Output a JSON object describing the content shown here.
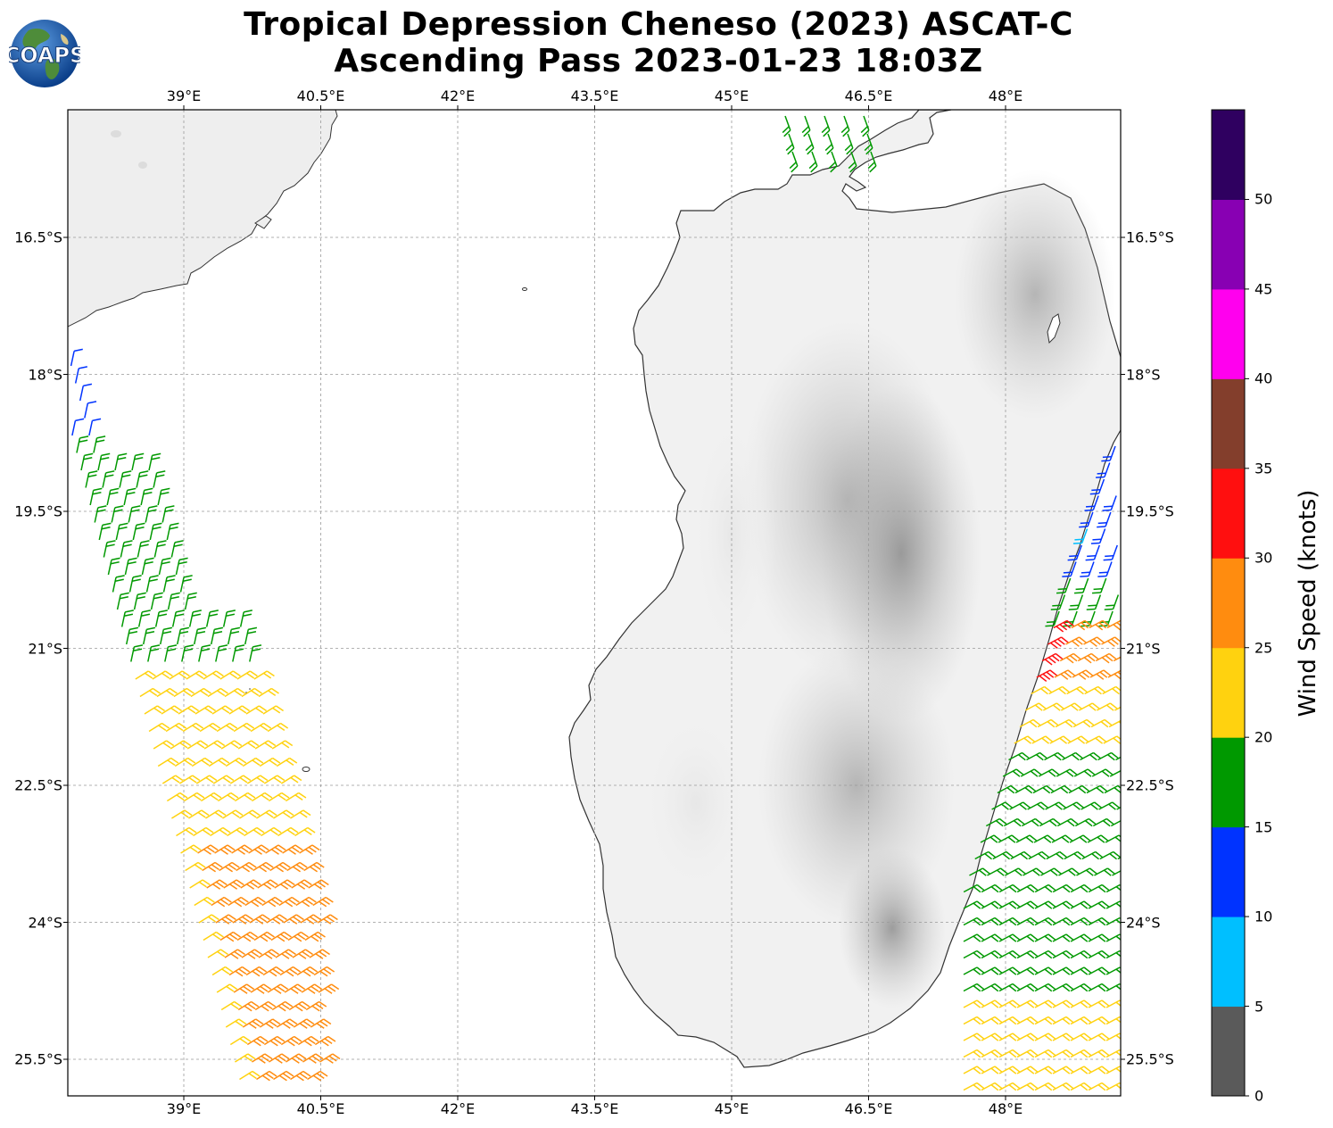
{
  "title": {
    "line1": "Tropical Depression Cheneso (2023) ASCAT-C",
    "line2": "Ascending Pass 2023-01-23 18:03Z"
  },
  "logo": {
    "text": "COAPS",
    "icon": "globe-icon"
  },
  "map": {
    "lon_ticks": [
      "39°E",
      "40.5°E",
      "42°E",
      "43.5°E",
      "45°E",
      "46.5°E",
      "48°E"
    ],
    "lat_ticks": [
      "16.5°S",
      "18°S",
      "19.5°S",
      "21°S",
      "22.5°S",
      "24°S",
      "25.5°S"
    ],
    "lon_range": [
      37.7,
      49.25
    ],
    "lat_range": [
      15.1,
      25.9
    ]
  },
  "colorbar": {
    "label": "Wind Speed (knots)",
    "ticks": [
      "0",
      "5",
      "10",
      "15",
      "20",
      "25",
      "30",
      "35",
      "40",
      "45",
      "50"
    ],
    "bins": [
      {
        "range": "0-5",
        "color": "#5a5a5a"
      },
      {
        "range": "5-10",
        "color": "#00bfff"
      },
      {
        "range": "10-15",
        "color": "#0033ff"
      },
      {
        "range": "15-20",
        "color": "#009900"
      },
      {
        "range": "20-25",
        "color": "#ffd20f"
      },
      {
        "range": "25-30",
        "color": "#ff8c0f"
      },
      {
        "range": "30-35",
        "color": "#ff0f0f"
      },
      {
        "range": "35-40",
        "color": "#833e2c"
      },
      {
        "range": "40-45",
        "color": "#ff00ee"
      },
      {
        "range": "45-50",
        "color": "#8800b3"
      },
      {
        "range": "50+",
        "color": "#2f0060"
      }
    ]
  }
}
